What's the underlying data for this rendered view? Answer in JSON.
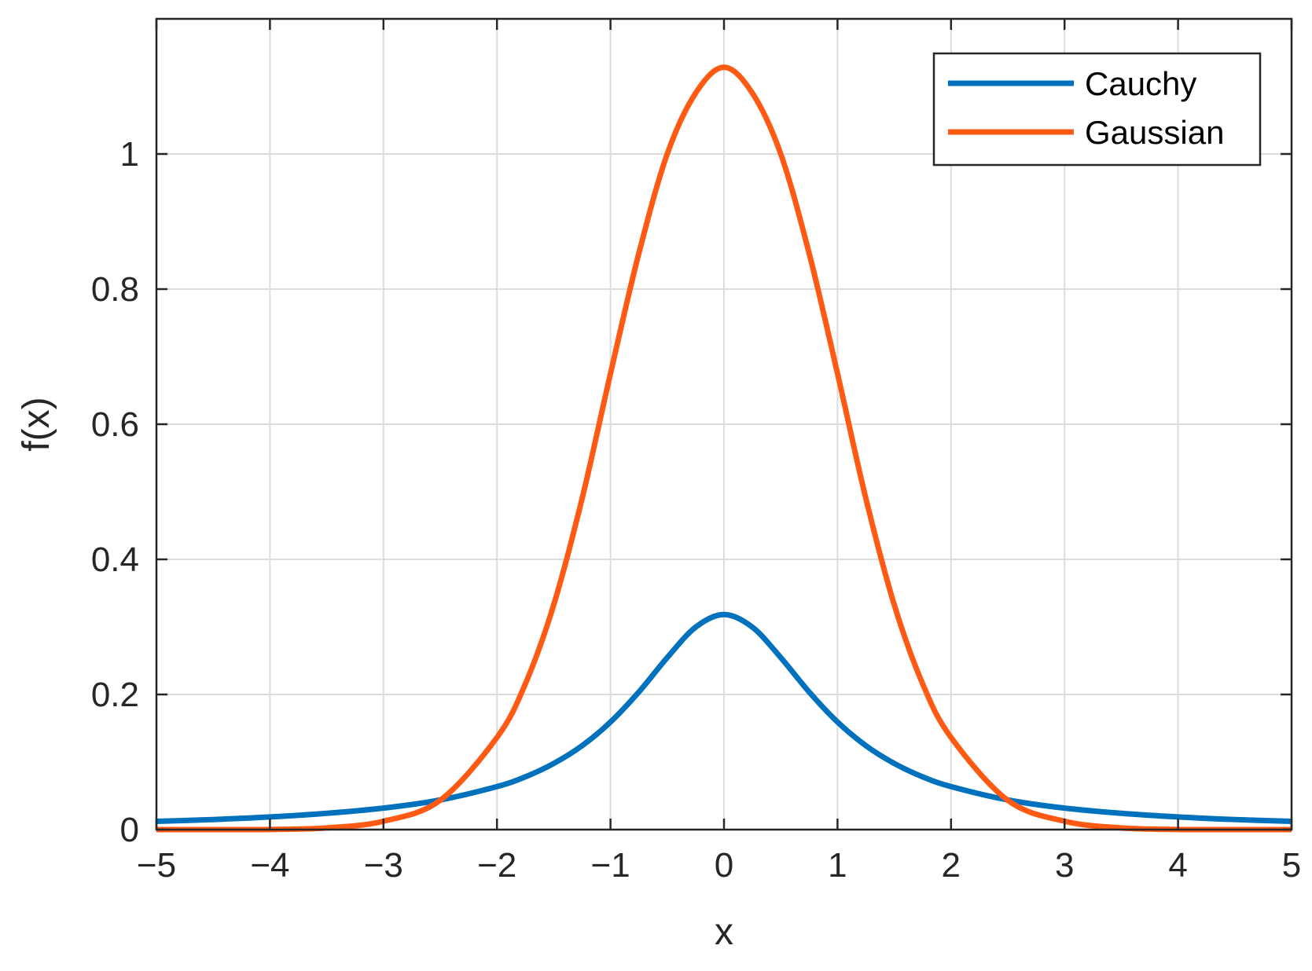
{
  "chart_data": {
    "type": "line",
    "title": "",
    "xlabel": "x",
    "ylabel": "f(x)",
    "xlim": [
      -5,
      5
    ],
    "ylim": [
      0,
      1.2
    ],
    "grid": true,
    "legend_position": "top-right",
    "x_ticks": [
      "−5",
      "−4",
      "−3",
      "−2",
      "−1",
      "0",
      "1",
      "2",
      "3",
      "4",
      "5"
    ],
    "x_tick_values": [
      -5,
      -4,
      -3,
      -2,
      -1,
      0,
      1,
      2,
      3,
      4,
      5
    ],
    "y_ticks": [
      "0",
      "0.2",
      "0.4",
      "0.6",
      "0.8",
      "1"
    ],
    "y_tick_values": [
      0,
      0.2,
      0.4,
      0.6,
      0.8,
      1
    ],
    "x": [
      -5,
      -4.5,
      -4,
      -3.5,
      -3,
      -2.5,
      -2,
      -1.75,
      -1.5,
      -1.25,
      -1,
      -0.75,
      -0.5,
      -0.25,
      0,
      0.25,
      0.5,
      0.75,
      1,
      1.25,
      1.5,
      1.75,
      2,
      2.5,
      3,
      3.5,
      4,
      4.5,
      5
    ],
    "series": [
      {
        "name": "Cauchy",
        "color": "#0072BD",
        "values": [
          0.0122,
          0.0149,
          0.0187,
          0.0241,
          0.0318,
          0.0439,
          0.0637,
          0.0781,
          0.0979,
          0.1242,
          0.1592,
          0.2037,
          0.2546,
          0.2996,
          0.3183,
          0.2996,
          0.2546,
          0.2037,
          0.1592,
          0.1242,
          0.0979,
          0.0781,
          0.0637,
          0.0439,
          0.0318,
          0.0241,
          0.0187,
          0.0149,
          0.0122
        ]
      },
      {
        "name": "Gaussian",
        "color": "#FF5A14",
        "values": [
          0.0,
          0.0,
          0.0002,
          0.0025,
          0.0124,
          0.0434,
          0.1364,
          0.2157,
          0.3327,
          0.49,
          0.675,
          0.853,
          1.0,
          1.09,
          1.1284,
          1.09,
          1.0,
          0.853,
          0.675,
          0.49,
          0.3327,
          0.2157,
          0.1364,
          0.0434,
          0.0124,
          0.0025,
          0.0002,
          0.0,
          0.0
        ]
      }
    ]
  }
}
